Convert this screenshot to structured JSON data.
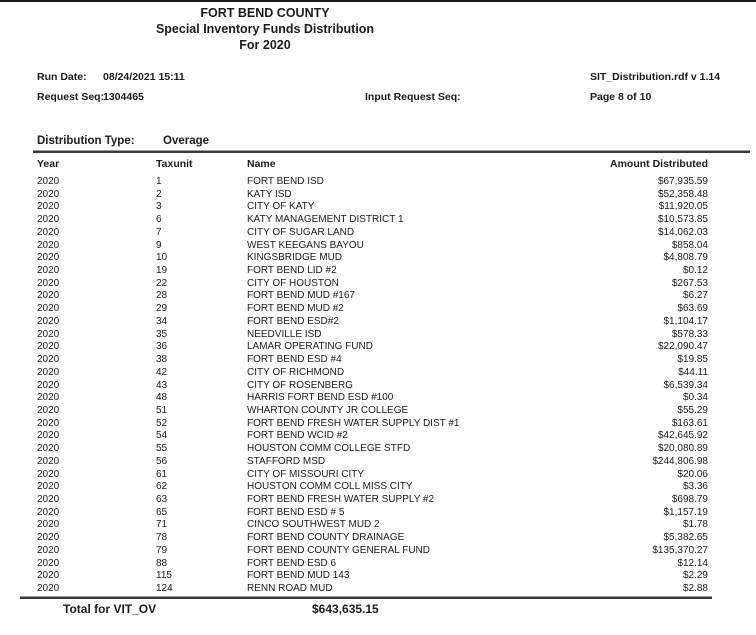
{
  "page": {
    "title_lines": [
      "FORT BEND COUNTY",
      "Special Inventory Funds Distribution",
      "For 2020"
    ]
  },
  "meta": {
    "run_date_label": "Run Date:",
    "run_date_value": "08/24/2021 15:11",
    "report_version": "SIT_Distribution.rdf v 1.14",
    "request_seq_label": "Request Seq:",
    "request_seq_value": "1304465",
    "input_request_seq_label": "Input Request Seq:",
    "page_indicator": "Page 8 of 10"
  },
  "distribution": {
    "label": "Distribution Type:",
    "value": "Overage"
  },
  "table": {
    "headers": [
      "Year",
      "Taxunit",
      "Name",
      "Amount Distributed"
    ],
    "rows": [
      [
        "2020",
        "1",
        "FORT BEND ISD",
        "$67,935.59"
      ],
      [
        "2020",
        "2",
        "KATY ISD",
        "$52,358.48"
      ],
      [
        "2020",
        "3",
        "CITY OF KATY",
        "$11,920.05"
      ],
      [
        "2020",
        "6",
        "KATY MANAGEMENT DISTRICT 1",
        "$10,573.85"
      ],
      [
        "2020",
        "7",
        "CITY OF SUGAR LAND",
        "$14,062.03"
      ],
      [
        "2020",
        "9",
        "WEST KEEGANS BAYOU",
        "$858.04"
      ],
      [
        "2020",
        "10",
        "KINGSBRIDGE MUD",
        "$4,808.79"
      ],
      [
        "2020",
        "19",
        "FORT BEND LID #2",
        "$0.12"
      ],
      [
        "2020",
        "22",
        "CITY OF HOUSTON",
        "$267.53"
      ],
      [
        "2020",
        "28",
        "FORT BEND MUD #167",
        "$6.27"
      ],
      [
        "2020",
        "29",
        "FORT BEND MUD #2",
        "$63.69"
      ],
      [
        "2020",
        "34",
        "FORT BEND ESD#2",
        "$1,104.17"
      ],
      [
        "2020",
        "35",
        "NEEDVILLE ISD",
        "$578.33"
      ],
      [
        "2020",
        "36",
        "LAMAR OPERATING FUND",
        "$22,090.47"
      ],
      [
        "2020",
        "38",
        "FORT BEND ESD #4",
        "$19.85"
      ],
      [
        "2020",
        "42",
        "CITY OF RICHMOND",
        "$44.11"
      ],
      [
        "2020",
        "43",
        "CITY OF ROSENBERG",
        "$6,539.34"
      ],
      [
        "2020",
        "48",
        "HARRIS FORT BEND ESD #100",
        "$0.34"
      ],
      [
        "2020",
        "51",
        "WHARTON COUNTY JR COLLEGE",
        "$55.29"
      ],
      [
        "2020",
        "52",
        "FORT BEND FRESH WATER SUPPLY DIST #1",
        "$163.61"
      ],
      [
        "2020",
        "54",
        "FORT BEND WCID #2",
        "$42,645.92"
      ],
      [
        "2020",
        "55",
        "HOUSTON COMM COLLEGE STFD",
        "$20,080.89"
      ],
      [
        "2020",
        "56",
        "STAFFORD MSD",
        "$244,806.98"
      ],
      [
        "2020",
        "61",
        "CITY OF MISSOURI CITY",
        "$20.06"
      ],
      [
        "2020",
        "62",
        "HOUSTON COMM COLL MISS CITY",
        "$3.36"
      ],
      [
        "2020",
        "63",
        "FORT BEND FRESH WATER SUPPLY #2",
        "$698.79"
      ],
      [
        "2020",
        "65",
        "FORT BEND ESD # 5",
        "$1,157.19"
      ],
      [
        "2020",
        "71",
        "CINCO SOUTHWEST MUD 2",
        "$1.78"
      ],
      [
        "2020",
        "78",
        "FORT BEND COUNTY DRAINAGE",
        "$5,382.65"
      ],
      [
        "2020",
        "79",
        "FORT BEND COUNTY GENERAL FUND",
        "$135,370.27"
      ],
      [
        "2020",
        "88",
        "FORT BEND ESD 6",
        "$12.14"
      ],
      [
        "2020",
        "115",
        "FORT BEND MUD 143",
        "$2.29"
      ],
      [
        "2020",
        "124",
        "RENN ROAD MUD",
        "$2.88"
      ]
    ]
  },
  "total": {
    "label": "Total for VIT_OV",
    "amount": "$643,635.15"
  },
  "colors": {
    "text": "#1b1b1b",
    "rule": "#383838"
  }
}
